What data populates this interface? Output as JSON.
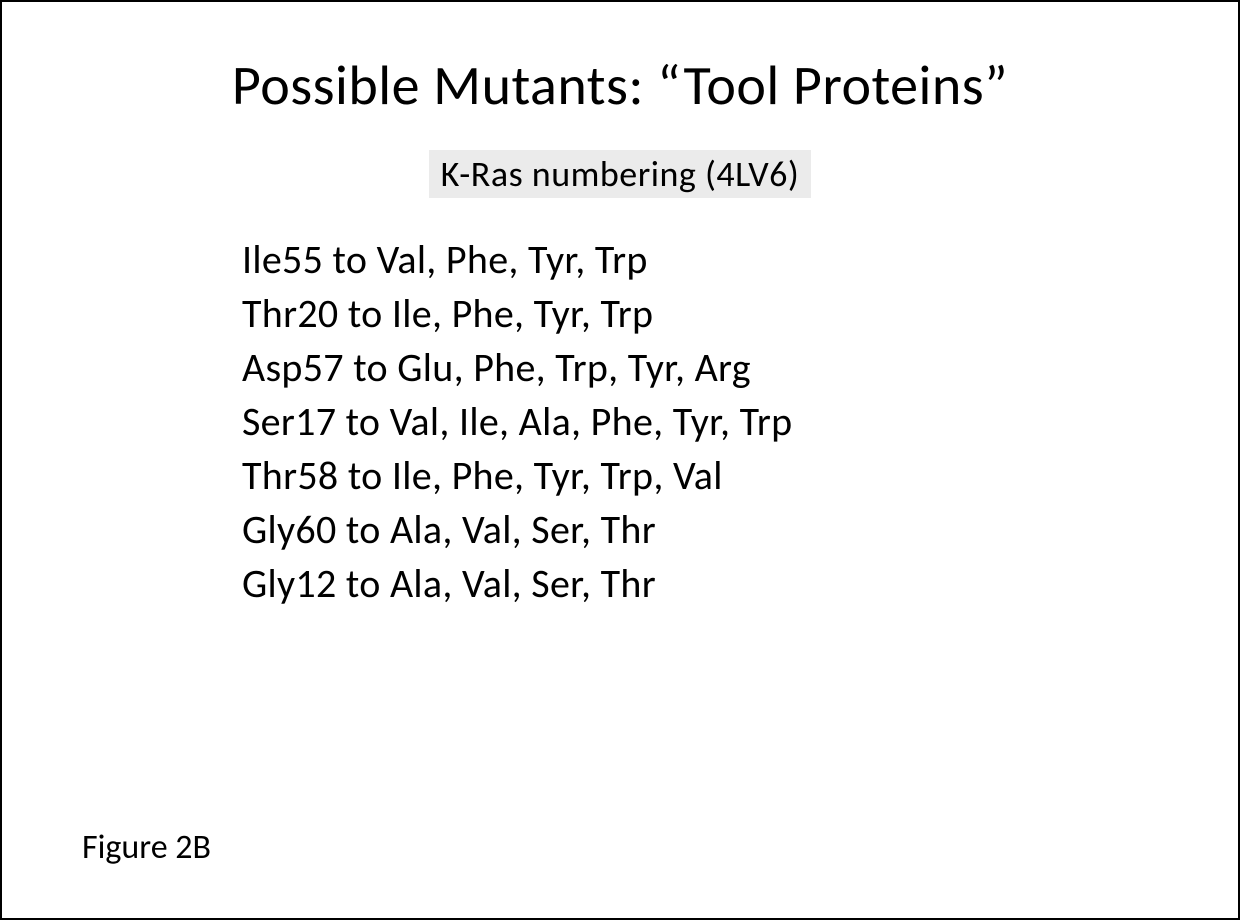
{
  "title": "Possible Mutants: “Tool Proteins”",
  "subtitle": "K-Ras numbering (4LV6)",
  "mutations": [
    "Ile55 to Val, Phe, Tyr, Trp",
    "Thr20 to Ile, Phe, Tyr, Trp",
    "Asp57 to Glu, Phe, Trp, Tyr, Arg",
    "Ser17 to Val, Ile, Ala, Phe, Tyr, Trp",
    "Thr58 to Ile, Phe, Tyr, Trp, Val",
    "Gly60 to Ala, Val, Ser, Thr",
    "Gly12 to Ala, Val, Ser, Thr"
  ],
  "figure_label": "Figure 2B",
  "styling": {
    "background_color": "#ffffff",
    "text_color": "#000000",
    "subtitle_highlight_color": "#ebebeb",
    "border_color": "#000000",
    "title_fontsize": 56,
    "subtitle_fontsize": 36,
    "mutation_fontsize": 40,
    "figure_label_fontsize": 34,
    "font_family": "Calibri",
    "font_weight": 300
  }
}
